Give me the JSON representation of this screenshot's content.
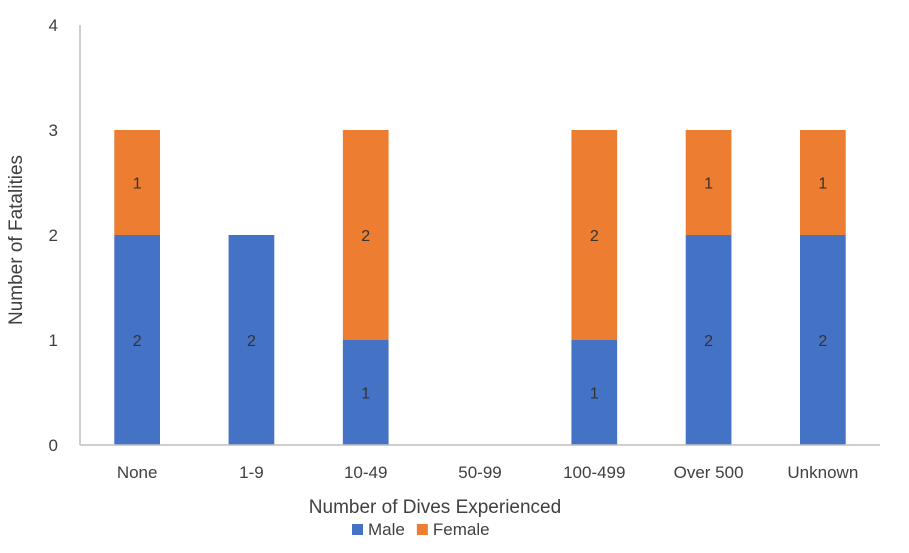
{
  "chart_data": {
    "type": "bar",
    "stacked": true,
    "title": "",
    "xlabel": "Number of Dives Experienced",
    "ylabel": "Number of Fatalities",
    "ylim": [
      0,
      4
    ],
    "yticks": [
      0,
      1,
      2,
      3,
      4
    ],
    "grid": false,
    "legend_position": "bottom",
    "categories": [
      "None",
      "1-9",
      "10-49",
      "50-99",
      "100-499",
      "Over 500",
      "Unknown"
    ],
    "series": [
      {
        "name": "Male",
        "color": "#4472C4",
        "values": [
          2,
          2,
          1,
          0,
          1,
          2,
          2
        ]
      },
      {
        "name": "Female",
        "color": "#ED7D31",
        "values": [
          1,
          0,
          2,
          0,
          2,
          1,
          1
        ]
      }
    ]
  }
}
